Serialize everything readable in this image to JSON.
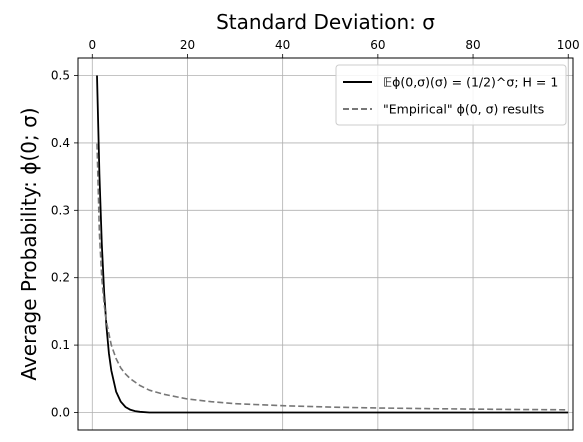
{
  "chart_data": {
    "type": "line",
    "title": "Standard Deviation: σ",
    "xlabel": "",
    "ylabel": "Average Probability: ϕ(0; σ)",
    "xaxis_position": "top",
    "xlim": [
      -3,
      101
    ],
    "ylim": [
      -0.026,
      0.526
    ],
    "xticks": [
      0,
      20,
      40,
      60,
      80,
      100
    ],
    "xtick_labels": [
      "0",
      "20",
      "40",
      "60",
      "80",
      "100"
    ],
    "yticks": [
      0.0,
      0.1,
      0.2,
      0.3,
      0.4,
      0.5
    ],
    "ytick_labels": [
      "0.0",
      "0.1",
      "0.2",
      "0.3",
      "0.4",
      "0.5"
    ],
    "grid": true,
    "legend_position": "top-right",
    "series": [
      {
        "name": "𝔼ϕ(0,σ)(σ) = (1/2)^σ; H = 1",
        "color": "#000000",
        "dash": "solid",
        "x": [
          1,
          1.5,
          2,
          2.5,
          3,
          3.5,
          4,
          5,
          6,
          7,
          8,
          9,
          10,
          12,
          15,
          20,
          30,
          50,
          75,
          100
        ],
        "y": [
          0.5,
          0.354,
          0.25,
          0.177,
          0.125,
          0.088,
          0.0625,
          0.031,
          0.016,
          0.008,
          0.004,
          0.002,
          0.001,
          0.0,
          0.0,
          0.0,
          0.0,
          0.0,
          0.0,
          0.0
        ]
      },
      {
        "name": "\"Empirical\" ϕ(0, σ) results",
        "color": "#777777",
        "dash": "dashed",
        "x": [
          1,
          1.5,
          2,
          2.5,
          3,
          4,
          5,
          6,
          7,
          8,
          10,
          12,
          15,
          20,
          25,
          30,
          40,
          50,
          60,
          70,
          80,
          90,
          100
        ],
        "y": [
          0.399,
          0.266,
          0.199,
          0.16,
          0.133,
          0.1,
          0.08,
          0.066,
          0.057,
          0.05,
          0.04,
          0.033,
          0.027,
          0.02,
          0.016,
          0.013,
          0.01,
          0.008,
          0.0066,
          0.0057,
          0.005,
          0.0044,
          0.004
        ]
      }
    ]
  }
}
